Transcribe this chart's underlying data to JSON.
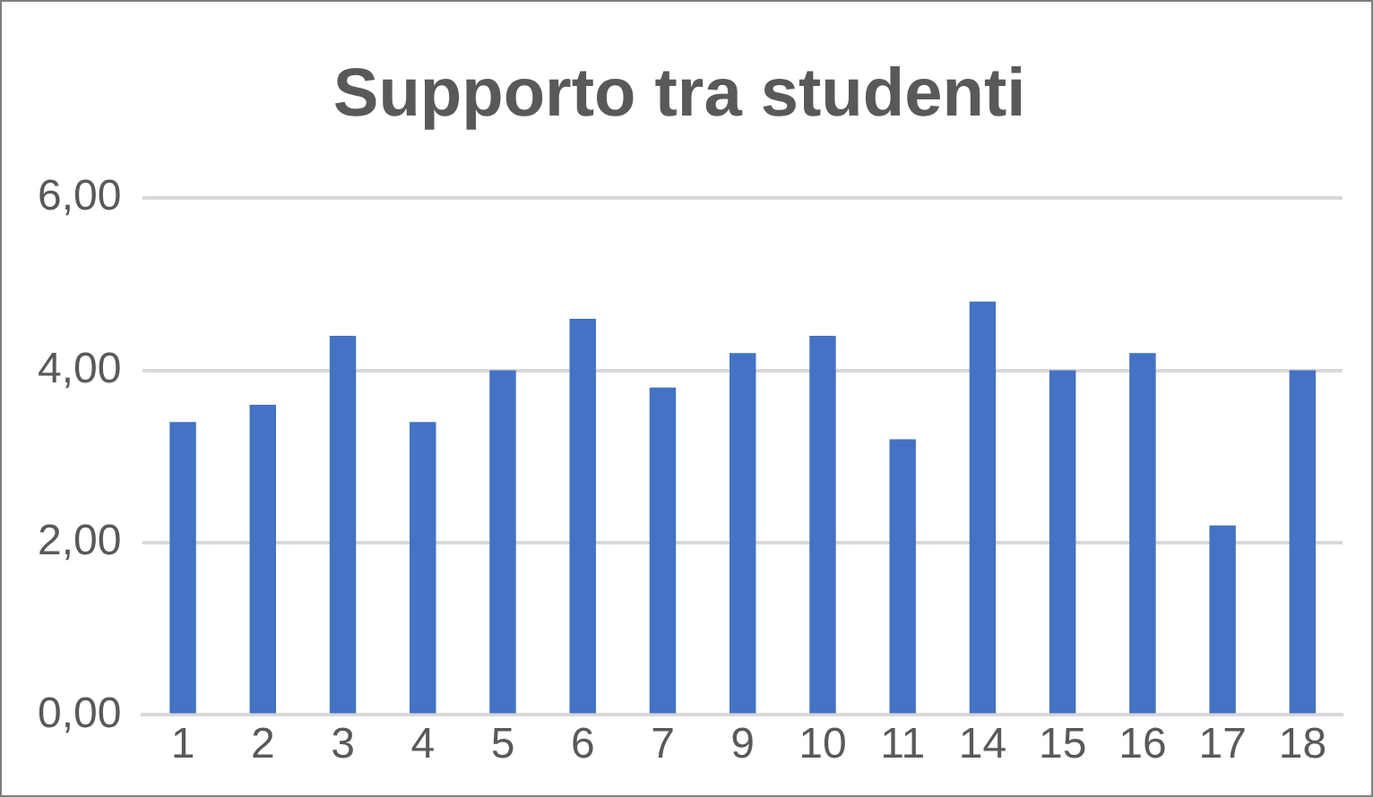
{
  "chart_data": {
    "type": "bar",
    "title": "Supporto tra studenti",
    "categories": [
      "1",
      "2",
      "3",
      "4",
      "5",
      "6",
      "7",
      "9",
      "10",
      "11",
      "14",
      "15",
      "16",
      "17",
      "18"
    ],
    "values": [
      3.4,
      3.6,
      4.4,
      3.4,
      4.0,
      4.6,
      3.8,
      4.2,
      4.4,
      3.2,
      4.8,
      4.0,
      4.2,
      2.2,
      4.0
    ],
    "color": "#4472c4",
    "ylim": [
      0,
      6
    ],
    "yticks": [
      {
        "value": 0,
        "label": "0,00"
      },
      {
        "value": 2,
        "label": "2,00"
      },
      {
        "value": 4,
        "label": "4,00"
      },
      {
        "value": 6,
        "label": "6,00"
      }
    ],
    "grid": "y",
    "legend": false
  }
}
